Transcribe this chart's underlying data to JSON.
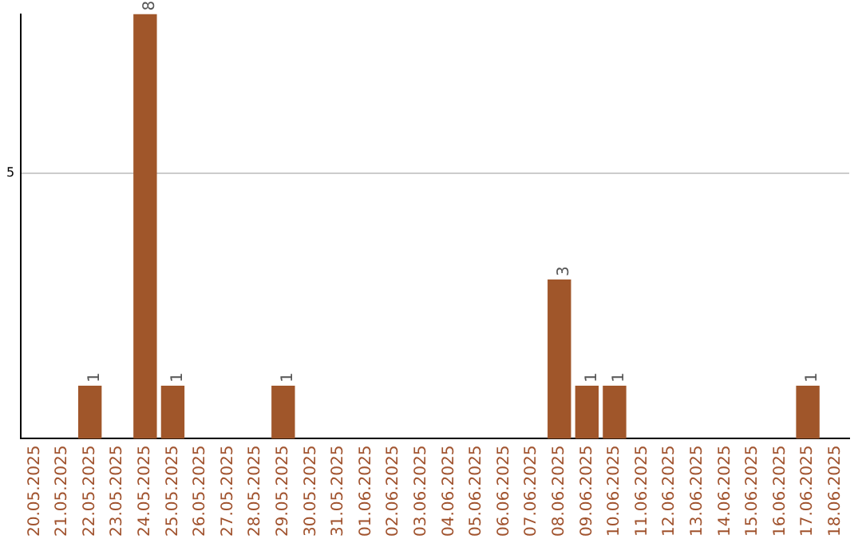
{
  "chart_data": {
    "type": "bar",
    "categories": [
      "20.05.2025",
      "21.05.2025",
      "22.05.2025",
      "23.05.2025",
      "24.05.2025",
      "25.05.2025",
      "26.05.2025",
      "27.05.2025",
      "28.05.2025",
      "29.05.2025",
      "30.05.2025",
      "31.05.2025",
      "01.06.2025",
      "02.06.2025",
      "03.06.2025",
      "04.06.2025",
      "05.06.2025",
      "06.06.2025",
      "07.06.2025",
      "08.06.2025",
      "09.06.2025",
      "10.06.2025",
      "11.06.2025",
      "12.06.2025",
      "13.06.2025",
      "14.06.2025",
      "15.06.2025",
      "16.06.2025",
      "17.06.2025",
      "18.06.2025"
    ],
    "values": [
      0,
      0,
      1,
      0,
      8,
      1,
      0,
      0,
      0,
      1,
      0,
      0,
      0,
      0,
      0,
      0,
      0,
      0,
      0,
      3,
      1,
      1,
      0,
      0,
      0,
      0,
      0,
      0,
      1,
      0
    ],
    "value_labels": [
      null,
      null,
      "1",
      null,
      "8",
      "1",
      null,
      null,
      null,
      "1",
      null,
      null,
      null,
      null,
      null,
      null,
      null,
      null,
      null,
      "3",
      "1",
      "1",
      null,
      null,
      null,
      null,
      null,
      null,
      "1",
      null
    ],
    "color": "#a0562a",
    "ylim": [
      0,
      8
    ],
    "yticks": [
      5
    ],
    "grid": "y",
    "legend": false
  }
}
